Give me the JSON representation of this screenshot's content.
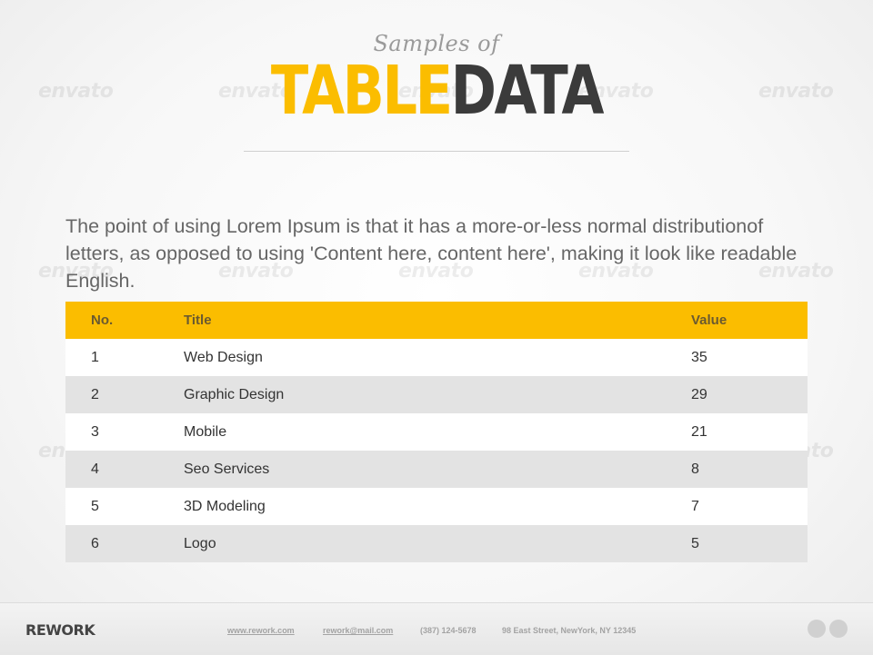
{
  "header": {
    "subtitle": "Samples of",
    "title_part1": "TABLE",
    "title_part2": "DATA"
  },
  "intro": "The point of using Lorem Ipsum is that it has a more-or-less normal distributionof letters, as opposed to using 'Content here, content here', making it look like readable English.",
  "table": {
    "headers": [
      "No.",
      "Title",
      "Value"
    ],
    "rows": [
      [
        "1",
        "Web Design",
        "35"
      ],
      [
        "2",
        "Graphic  Design",
        "29"
      ],
      [
        "3",
        "Mobile",
        "21"
      ],
      [
        "4",
        "Seo  Services",
        "8"
      ],
      [
        "5",
        "3D  Modeling",
        "7"
      ],
      [
        "6",
        "Logo",
        "5"
      ]
    ]
  },
  "footer": {
    "brand": "REWORK",
    "website": "www.rework.com",
    "email": "rework@mail.com",
    "phone": "(387) 124-5678",
    "address": "98 East Street, NewYork, NY 12345"
  },
  "watermark": "envato",
  "colors": {
    "accent": "#fbbd00",
    "dark": "#3b3b3b",
    "row_alt": "#e3e3e3"
  }
}
